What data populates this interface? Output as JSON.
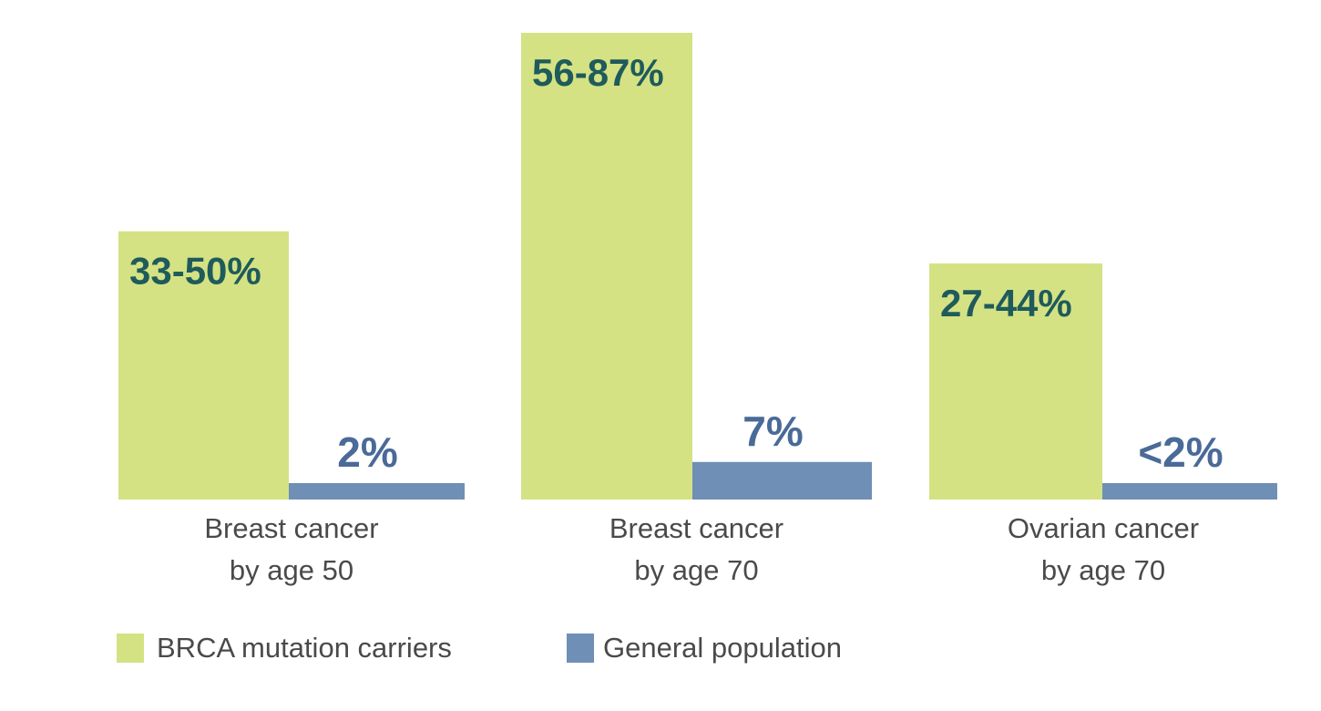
{
  "chart_data": {
    "type": "bar",
    "categories": [
      [
        "Breast cancer",
        "by age 50"
      ],
      [
        "Breast cancer",
        "by age 70"
      ],
      [
        "Ovarian cancer",
        "by age 70"
      ]
    ],
    "series": [
      {
        "name": "BRCA mutation carriers",
        "color": "#d4e284",
        "label_color": "#1f5b5b",
        "values": [
          50,
          87,
          44
        ],
        "labels": [
          "33-50%",
          "56-87%",
          "27-44%"
        ]
      },
      {
        "name": "General population",
        "color": "#6f8fb6",
        "label_color": "#4a6a98",
        "values": [
          2,
          7,
          2
        ],
        "labels": [
          "2%",
          "7%",
          "<2%"
        ]
      }
    ],
    "ylim": [
      0,
      87
    ],
    "grid": false,
    "legend_position": "bottom-left",
    "title": "",
    "xlabel": "",
    "ylabel": ""
  }
}
